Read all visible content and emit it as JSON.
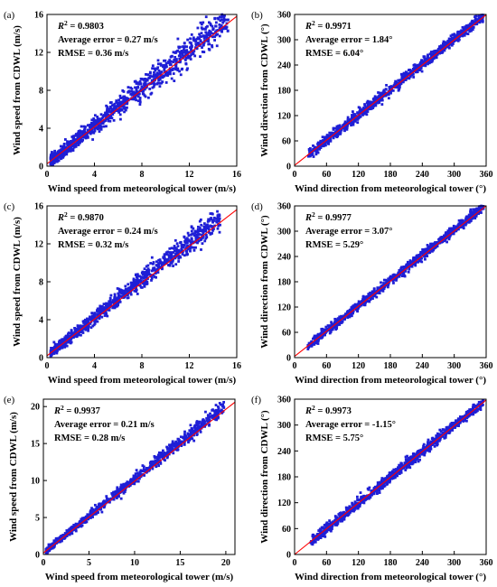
{
  "colors": {
    "points": "#1f1fd6",
    "fit_line": "#ff0000",
    "axes": "#000000"
  },
  "chart_data": [
    {
      "type": "scatter",
      "panel_label": "(a)",
      "xlabel": "Wind speed from meteorological tower (m/s)",
      "ylabel": "Wind speed from CDWL (m/s)",
      "xlim": [
        0,
        16
      ],
      "ylim": [
        0,
        16
      ],
      "xticks": [
        "0",
        "4",
        "8",
        "12",
        "16"
      ],
      "yticks": [
        "0",
        "4",
        "8",
        "12",
        "16"
      ],
      "xtick_values": [
        0,
        4,
        8,
        12,
        16
      ],
      "ytick_values": [
        0,
        4,
        8,
        12,
        16
      ],
      "annotations": {
        "r2_value": "0.9803",
        "average_error": "Average error = 0.27 m/s",
        "rmse": "RMSE = 0.36 m/s"
      },
      "fit_line": {
        "x": [
          0,
          16
        ],
        "y": [
          0.25,
          15.8
        ]
      },
      "scatter": {
        "x_range": [
          0.3,
          15.3
        ],
        "n": 1000,
        "spread": 0.6,
        "bias": 0.25
      }
    },
    {
      "type": "scatter",
      "panel_label": "(b)",
      "xlabel": "Wind direction from meteorological tower (°)",
      "ylabel": "Wind direction from CDWL (°)",
      "xlim": [
        0,
        360
      ],
      "ylim": [
        0,
        360
      ],
      "xticks": [
        "0",
        "60",
        "120",
        "180",
        "240",
        "300",
        "360"
      ],
      "yticks": [
        "0",
        "60",
        "120",
        "180",
        "240",
        "300",
        "360"
      ],
      "xtick_values": [
        0,
        60,
        120,
        180,
        240,
        300,
        360
      ],
      "ytick_values": [
        0,
        60,
        120,
        180,
        240,
        300,
        360
      ],
      "annotations": {
        "r2_value": "0.9971",
        "average_error": "Average error = 1.84°",
        "rmse": "RMSE = 6.04°"
      },
      "fit_line": {
        "x": [
          0,
          360
        ],
        "y": [
          2,
          359
        ]
      },
      "scatter": {
        "x_range": [
          25,
          355
        ],
        "n": 1000,
        "spread": 6,
        "bias": 1.8
      }
    },
    {
      "type": "scatter",
      "panel_label": "(c)",
      "xlabel": "Wind speed from meteorological tower (m/s)",
      "ylabel": "Wind speed from CDWL (m/s)",
      "xlim": [
        0,
        16
      ],
      "ylim": [
        0,
        16
      ],
      "xticks": [
        "0",
        "4",
        "8",
        "12",
        "16"
      ],
      "yticks": [
        "0",
        "4",
        "8",
        "12",
        "16"
      ],
      "xtick_values": [
        0,
        4,
        8,
        12,
        16
      ],
      "ytick_values": [
        0,
        4,
        8,
        12,
        16
      ],
      "annotations": {
        "r2_value": "0.9870",
        "average_error": "Average error = 0.24 m/s",
        "rmse": "RMSE = 0.32 m/s"
      },
      "fit_line": {
        "x": [
          0,
          16
        ],
        "y": [
          0.2,
          15.6
        ]
      },
      "scatter": {
        "x_range": [
          0.3,
          14.6
        ],
        "n": 1000,
        "spread": 0.45,
        "bias": 0.2
      }
    },
    {
      "type": "scatter",
      "panel_label": "(d)",
      "xlabel": "Wind direction from meteorological tower (°)",
      "ylabel": "Wind direction from CDWL (°)",
      "xlim": [
        0,
        360
      ],
      "ylim": [
        0,
        360
      ],
      "xticks": [
        "0",
        "60",
        "120",
        "180",
        "240",
        "300",
        "360"
      ],
      "yticks": [
        "0",
        "60",
        "120",
        "180",
        "240",
        "300",
        "360"
      ],
      "xtick_values": [
        0,
        60,
        120,
        180,
        240,
        300,
        360
      ],
      "ytick_values": [
        0,
        60,
        120,
        180,
        240,
        300,
        360
      ],
      "annotations": {
        "r2_value": "0.9977",
        "average_error": "Average error = 3.07°",
        "rmse": "RMSE = 5.29°"
      },
      "fit_line": {
        "x": [
          0,
          360
        ],
        "y": [
          3,
          360
        ]
      },
      "scatter": {
        "x_range": [
          25,
          355
        ],
        "n": 1000,
        "spread": 5.2,
        "bias": 3
      }
    },
    {
      "type": "scatter",
      "panel_label": "(e)",
      "xlabel": "Wind speed from meteorological tower (m/s)",
      "ylabel": "Wind speed from CDWL (m/s)",
      "xlim": [
        0,
        21
      ],
      "ylim": [
        0,
        21
      ],
      "xticks": [
        "0",
        "5",
        "10",
        "15",
        "20"
      ],
      "yticks": [
        "0",
        "5",
        "10",
        "15",
        "20"
      ],
      "xtick_values": [
        0,
        5,
        10,
        15,
        20
      ],
      "ytick_values": [
        0,
        5,
        10,
        15,
        20
      ],
      "annotations": {
        "r2_value": "0.9937",
        "average_error": "Average error = 0.21 m/s",
        "rmse": "RMSE = 0.28 m/s"
      },
      "fit_line": {
        "x": [
          0,
          21
        ],
        "y": [
          0.2,
          20.6
        ]
      },
      "scatter": {
        "x_range": [
          0.3,
          19.8
        ],
        "n": 1000,
        "spread": 0.35,
        "bias": 0.2
      }
    },
    {
      "type": "scatter",
      "panel_label": "(f)",
      "xlabel": "Wind direction from meteorological tower (°)",
      "ylabel": "Wind direction from CDWL (°)",
      "xlim": [
        0,
        360
      ],
      "ylim": [
        0,
        360
      ],
      "xticks": [
        "0",
        "60",
        "120",
        "180",
        "240",
        "300",
        "360"
      ],
      "yticks": [
        "0",
        "60",
        "120",
        "180",
        "240",
        "300",
        "360"
      ],
      "xtick_values": [
        0,
        60,
        120,
        180,
        240,
        300,
        360
      ],
      "ytick_values": [
        0,
        60,
        120,
        180,
        240,
        300,
        360
      ],
      "annotations": {
        "r2_value": "0.9973",
        "average_error": "Average error = -1.15°",
        "rmse": "RMSE = 5.75°"
      },
      "fit_line": {
        "x": [
          0,
          360
        ],
        "y": [
          0,
          358
        ]
      },
      "scatter": {
        "x_range": [
          30,
          355
        ],
        "n": 1000,
        "spread": 5.7,
        "bias": -1.15
      }
    }
  ]
}
